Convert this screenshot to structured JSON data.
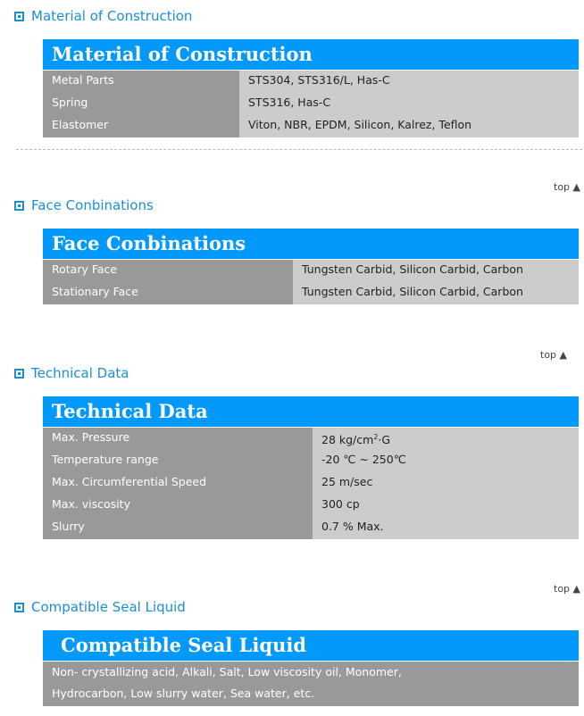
{
  "sections": [
    {
      "heading": "Material of Construction",
      "title": "Material of Construction",
      "rows": [
        {
          "label": "Metal Parts",
          "value": "STS304, STS316/L, Has-C"
        },
        {
          "label": "Spring",
          "value": "STS316, Has-C"
        },
        {
          "label": "Elastomer",
          "value": "Viton, NBR, EPDM, Silicon, Kalrez, Teflon"
        }
      ]
    },
    {
      "heading": "Face Conbinations",
      "title": "Face Conbinations",
      "rows": [
        {
          "label": "Rotary Face",
          "value": "Tungsten Carbid, Silicon Carbid, Carbon"
        },
        {
          "label": "Stationary Face",
          "value": "Tungsten Carbid, Silicon Carbid, Carbon"
        }
      ]
    },
    {
      "heading": "Technical Data",
      "title": "Technical Data",
      "rows": [
        {
          "label": "Max. Pressure",
          "value": "28 kg/cm",
          "sup": "2",
          "suffix": "·G"
        },
        {
          "label": "Temperature range",
          "value": "-20 ℃ ~ 250℃"
        },
        {
          "label": "Max. Circumferential Speed",
          "value": "25 m/sec"
        },
        {
          "label": "Max. viscosity",
          "value": "300 cp"
        },
        {
          "label": "Slurry",
          "value": "0.7 % Max."
        }
      ]
    },
    {
      "heading": "Compatible Seal Liquid",
      "title": "Compatible Seal Liquid",
      "lines": [
        "Non- crystallizing acid, Alkali, Salt, Low viscosity oil, Monomer,",
        "Hydrocarbon, Low slurry water, Sea water, etc."
      ]
    }
  ],
  "top_link": "top ▲",
  "colors": {
    "accent": "#0399fb",
    "heading": "#1a8fd6",
    "label_bg": "#999999",
    "value_bg": "#cccccc"
  }
}
